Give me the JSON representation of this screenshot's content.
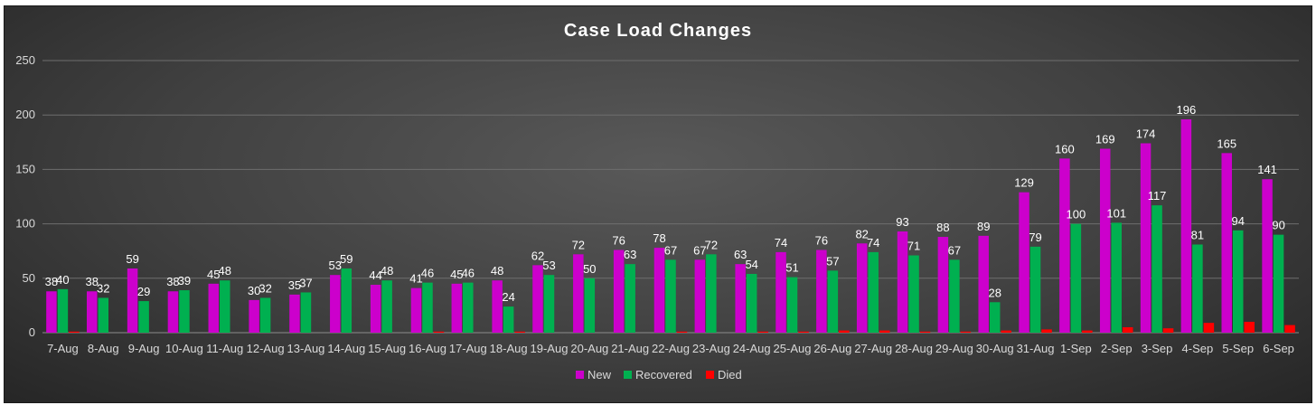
{
  "chart_data": {
    "type": "bar",
    "title": "Case Load Changes",
    "xlabel": "",
    "ylabel": "",
    "ylim": [
      0,
      250
    ],
    "yticks": [
      0,
      50,
      100,
      150,
      200,
      250
    ],
    "grid": true,
    "legend_position": "bottom",
    "categories": [
      "7-Aug",
      "8-Aug",
      "9-Aug",
      "10-Aug",
      "11-Aug",
      "12-Aug",
      "13-Aug",
      "14-Aug",
      "15-Aug",
      "16-Aug",
      "17-Aug",
      "18-Aug",
      "19-Aug",
      "20-Aug",
      "21-Aug",
      "22-Aug",
      "23-Aug",
      "24-Aug",
      "25-Aug",
      "26-Aug",
      "27-Aug",
      "28-Aug",
      "29-Aug",
      "30-Aug",
      "31-Aug",
      "1-Sep",
      "2-Sep",
      "3-Sep",
      "4-Sep",
      "5-Sep",
      "6-Sep"
    ],
    "series": [
      {
        "name": "New",
        "color": "#cc00cc",
        "show_labels": true,
        "values": [
          38,
          38,
          59,
          38,
          45,
          30,
          35,
          53,
          44,
          41,
          45,
          48,
          62,
          72,
          76,
          78,
          67,
          63,
          74,
          76,
          82,
          93,
          88,
          89,
          129,
          160,
          169,
          174,
          196,
          165,
          141
        ]
      },
      {
        "name": "Recovered",
        "color": "#00b050",
        "show_labels": true,
        "values": [
          40,
          32,
          29,
          39,
          48,
          32,
          37,
          59,
          48,
          46,
          46,
          24,
          53,
          50,
          63,
          67,
          72,
          54,
          51,
          57,
          74,
          71,
          67,
          28,
          79,
          100,
          101,
          117,
          81,
          94,
          90
        ]
      },
      {
        "name": "Died",
        "color": "#ff0000",
        "show_labels": false,
        "values": [
          1,
          0,
          0,
          0,
          0,
          0,
          0,
          0,
          0,
          1,
          0,
          1,
          0,
          0,
          0,
          1,
          0,
          1,
          1,
          2,
          2,
          1,
          1,
          2,
          3,
          2,
          5,
          4,
          9,
          10,
          7
        ]
      }
    ]
  }
}
